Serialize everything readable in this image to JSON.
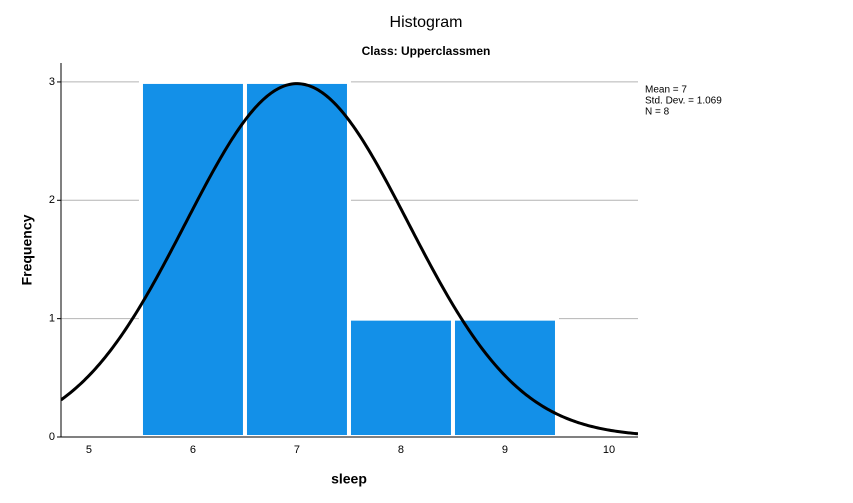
{
  "chart_data": {
    "type": "histogram",
    "title": "Histogram",
    "subtitle": "Class: Upperclassmen",
    "x_label": "sleep",
    "y_label": "Frequency",
    "bins": [
      5.5,
      6.5,
      7.5,
      8.5,
      9.5
    ],
    "values": [
      3,
      3,
      1,
      1
    ],
    "color": "#1390e8",
    "xlim": [
      4.731,
      10.279
    ],
    "xticks": [
      5,
      6,
      7,
      8,
      9,
      10
    ],
    "ylim": [
      0,
      3.16
    ],
    "yticks": [
      0,
      1,
      2,
      3
    ],
    "grid": true,
    "stats": [
      {
        "value": 7,
        "label": "Mean = 7"
      },
      {
        "value": 1.069,
        "label": "Std. Dev. = 1.069"
      },
      {
        "value": 8,
        "label": "N = 8"
      }
    ]
  }
}
